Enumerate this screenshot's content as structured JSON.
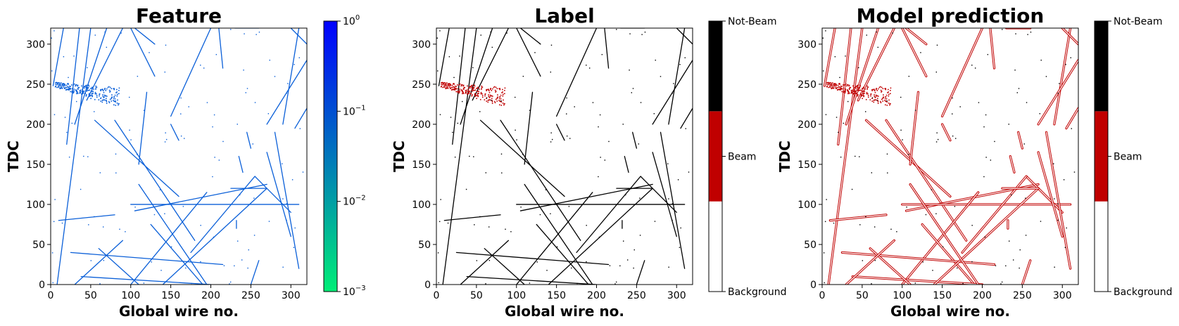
{
  "chart_data": [
    {
      "type": "heatmap",
      "title": "Feature",
      "xlabel": "Global wire no.",
      "ylabel": "TDC",
      "xlim": [
        0,
        320
      ],
      "ylim": [
        0,
        320
      ],
      "xticks": [
        0,
        50,
        100,
        150,
        200,
        250,
        300
      ],
      "yticks": [
        0,
        50,
        100,
        150,
        200,
        250,
        300
      ],
      "colorbar": {
        "scale": "log",
        "range": [
          0.001,
          1
        ],
        "colors": [
          "#00ee77",
          "#0077bb",
          "#0000ff"
        ],
        "ticks": [
          {
            "value": 1,
            "base": "10",
            "exp": "0"
          },
          {
            "value": 0.1,
            "base": "10",
            "exp": "−1"
          },
          {
            "value": 0.01,
            "base": "10",
            "exp": "−2"
          },
          {
            "value": 0.001,
            "base": "10",
            "exp": "−3"
          }
        ]
      },
      "mark_color": "#0a5fd8",
      "cluster_color": "#0a5fd8"
    },
    {
      "type": "heatmap",
      "title": "Label",
      "xlabel": "Global wire no.",
      "ylabel": "TDC",
      "xlim": [
        0,
        320
      ],
      "ylim": [
        0,
        320
      ],
      "xticks": [
        0,
        50,
        100,
        150,
        200,
        250,
        300
      ],
      "yticks": [
        0,
        50,
        100,
        150,
        200,
        250,
        300
      ],
      "colorbar": {
        "scale": "categorical",
        "categories": [
          {
            "label": "Background",
            "color": "#ffffff"
          },
          {
            "label": "Beam",
            "color": "#c00000"
          },
          {
            "label": "Not-Beam",
            "color": "#000000"
          }
        ]
      },
      "mark_color": "#000000",
      "cluster_color": "#c00000"
    },
    {
      "type": "heatmap",
      "title": "Model prediction",
      "xlabel": "Global wire no.",
      "ylabel": "TDC",
      "xlim": [
        0,
        320
      ],
      "ylim": [
        0,
        320
      ],
      "xticks": [
        0,
        50,
        100,
        150,
        200,
        250,
        300
      ],
      "yticks": [
        0,
        50,
        100,
        150,
        200,
        250,
        300
      ],
      "colorbar": {
        "scale": "categorical",
        "categories": [
          {
            "label": "Background",
            "color": "#ffffff"
          },
          {
            "label": "Beam",
            "color": "#c00000"
          },
          {
            "label": "Not-Beam",
            "color": "#000000"
          }
        ]
      },
      "mark_color": "#000000",
      "halo_color": "#c00000",
      "cluster_color": "#c00000"
    }
  ],
  "tracks": [
    [
      3,
      248,
      16,
      320
    ],
    [
      8,
      0,
      50,
      320
    ],
    [
      20,
      175,
      36,
      320
    ],
    [
      30,
      200,
      70,
      320
    ],
    [
      45,
      230,
      90,
      320
    ],
    [
      100,
      320,
      130,
      260
    ],
    [
      200,
      320,
      150,
      210
    ],
    [
      210,
      320,
      215,
      270
    ],
    [
      310,
      320,
      290,
      200
    ],
    [
      320,
      280,
      270,
      200
    ],
    [
      320,
      220,
      305,
      195
    ],
    [
      260,
      320,
      230,
      320
    ],
    [
      55,
      205,
      160,
      110
    ],
    [
      80,
      205,
      180,
      55
    ],
    [
      10,
      80,
      80,
      87
    ],
    [
      105,
      92,
      270,
      125
    ],
    [
      100,
      100,
      310,
      100
    ],
    [
      255,
      135,
      300,
      90
    ],
    [
      270,
      165,
      300,
      60
    ],
    [
      235,
      160,
      240,
      140
    ],
    [
      175,
      40,
      255,
      135
    ],
    [
      100,
      0,
      195,
      115
    ],
    [
      125,
      75,
      190,
      0
    ],
    [
      25,
      40,
      215,
      25
    ],
    [
      38,
      10,
      200,
      0
    ],
    [
      60,
      45,
      110,
      0
    ],
    [
      140,
      0,
      270,
      120
    ],
    [
      30,
      0,
      90,
      55
    ],
    [
      195,
      0,
      110,
      125
    ],
    [
      225,
      120,
      270,
      120
    ],
    [
      110,
      150,
      120,
      240
    ],
    [
      150,
      200,
      160,
      180
    ],
    [
      280,
      190,
      310,
      20
    ],
    [
      245,
      190,
      250,
      170
    ],
    [
      105,
      320,
      130,
      300
    ],
    [
      300,
      320,
      320,
      300
    ],
    [
      260,
      30,
      250,
      0
    ],
    [
      232,
      70,
      232,
      80
    ]
  ],
  "beam_cluster": {
    "x_range": [
      5,
      85
    ],
    "y_range": [
      225,
      255
    ]
  }
}
